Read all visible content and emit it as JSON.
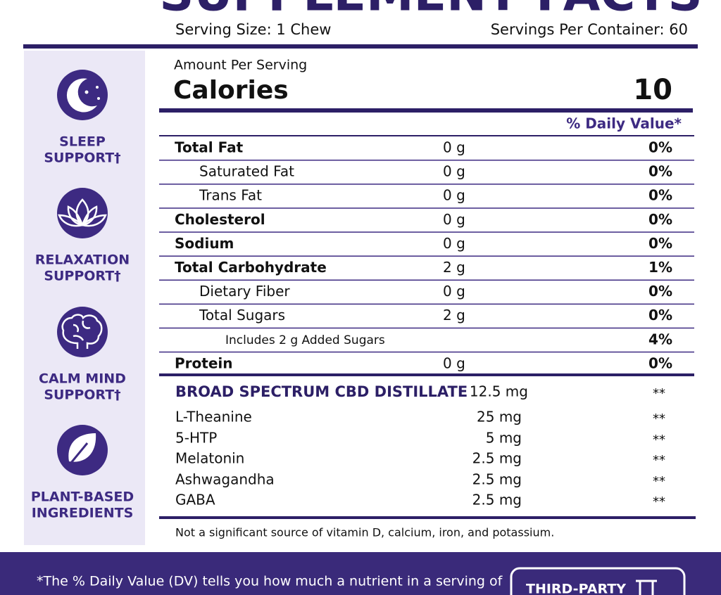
{
  "header": {
    "title": "SUPPLEMENT FACTS",
    "serving_size": "Serving Size: 1 Chew",
    "servings_per_container": "Servings Per Container: 60"
  },
  "benefits": [
    {
      "lines": [
        "SLEEP",
        "SUPPORT†"
      ]
    },
    {
      "lines": [
        "RELAXATION",
        "SUPPORT†"
      ]
    },
    {
      "lines": [
        "CALM MIND",
        "SUPPORT†"
      ]
    },
    {
      "lines": [
        "PLANT-BASED",
        "INGREDIENTS"
      ]
    }
  ],
  "nutrition": {
    "amount_per_serving": "Amount Per Serving",
    "calories_label": "Calories",
    "calories": 10,
    "daily_value_header": "% Daily Value*",
    "rows": [
      {
        "name": "Total Fat",
        "amount": "0 g",
        "daily_value": "0%"
      },
      {
        "name": "Saturated Fat",
        "amount": "0 g",
        "daily_value": "0%"
      },
      {
        "name": "Trans Fat",
        "amount": "0 g",
        "daily_value": "0%"
      },
      {
        "name": "Cholesterol",
        "amount": "0 g",
        "daily_value": "0%"
      },
      {
        "name": "Sodium",
        "amount": "0 g",
        "daily_value": "0%"
      },
      {
        "name": "Total Carbohydrate",
        "amount": "2 g",
        "daily_value": "1%"
      },
      {
        "name": "Dietary Fiber",
        "amount": "0 g",
        "daily_value": "0%"
      },
      {
        "name": "Total Sugars",
        "amount": "2 g",
        "daily_value": "0%"
      },
      {
        "name": "Includes 2 g Added Sugars",
        "daily_value": "4%"
      },
      {
        "name": "Protein",
        "amount": "0 g",
        "daily_value": "0%"
      }
    ]
  },
  "ingredients": [
    {
      "name": "BROAD SPECTRUM CBD DISTILLATE",
      "amount": "12.5 mg",
      "daily_value": "**"
    },
    {
      "name": "L-Theanine",
      "amount": "25 mg",
      "daily_value": "**"
    },
    {
      "name": "5-HTP",
      "amount": "5 mg",
      "daily_value": "**"
    },
    {
      "name": "Melatonin",
      "amount": "2.5 mg",
      "daily_value": "**"
    },
    {
      "name": "Ashwagandha",
      "amount": "2.5 mg",
      "daily_value": "**"
    },
    {
      "name": "GABA",
      "amount": "2.5 mg",
      "daily_value": "**"
    }
  ],
  "note": "Not a significant source of vitamin D, calcium, iron, and potassium.",
  "footer": {
    "disclaimer": "*The % Daily Value (DV) tells you how much a nutrient in a serving of",
    "badge": "THIRD-PARTY"
  }
}
